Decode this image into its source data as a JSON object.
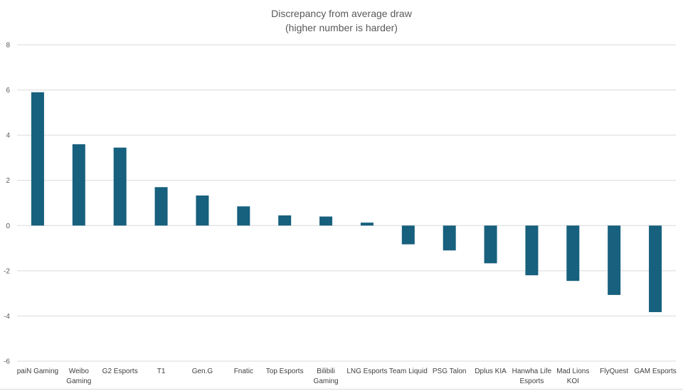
{
  "chart_data": {
    "type": "bar",
    "title": [
      "Discrepancy from average draw",
      "(higher number is harder)"
    ],
    "xlabel": "",
    "ylabel": "",
    "ylim": [
      -6,
      8
    ],
    "yticks": [
      -6,
      -4,
      -2,
      0,
      2,
      4,
      6,
      8
    ],
    "grid": true,
    "legend": "none",
    "bar_color": "#17607e",
    "categories": [
      [
        "paiN Gaming"
      ],
      [
        "Weibo",
        "Gaming"
      ],
      [
        "G2 Esports"
      ],
      [
        "T1"
      ],
      [
        "Gen.G"
      ],
      [
        "Fnatic"
      ],
      [
        "Top Esports"
      ],
      [
        "Bilibili",
        "Gaming"
      ],
      [
        "LNG Esports"
      ],
      [
        "Team Liquid"
      ],
      [
        "PSG Talon"
      ],
      [
        "Dplus KIA"
      ],
      [
        "Hanwha Life",
        "Esports"
      ],
      [
        "Mad Lions",
        "KOI"
      ],
      [
        "FlyQuest"
      ],
      [
        "GAM Esports"
      ]
    ],
    "values": [
      5.9,
      3.6,
      3.45,
      1.7,
      1.33,
      0.85,
      0.45,
      0.4,
      0.13,
      -0.83,
      -1.1,
      -1.67,
      -2.2,
      -2.45,
      -3.07,
      -3.83
    ]
  }
}
